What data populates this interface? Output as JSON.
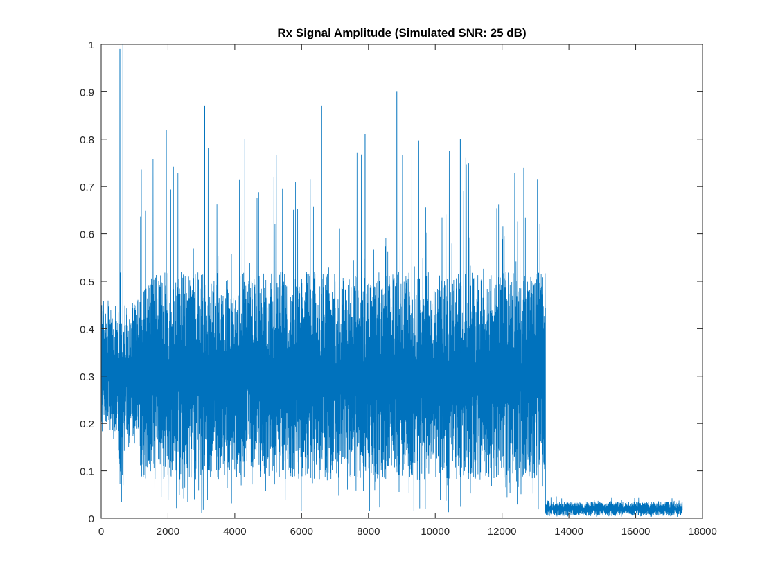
{
  "colors": {
    "background": "#ffffff",
    "axes": "#262626",
    "series": "#0072BD"
  },
  "chart_data": {
    "type": "line",
    "title": "Rx Signal Amplitude (Simulated SNR: 25 dB)",
    "xlabel": "",
    "ylabel": "",
    "xlim": [
      0,
      18000
    ],
    "ylim": [
      0,
      1
    ],
    "grid": false,
    "legend": "none",
    "x_ticks": [
      0,
      2000,
      4000,
      6000,
      8000,
      10000,
      12000,
      14000,
      16000,
      18000
    ],
    "x_tick_labels": [
      "0",
      "2000",
      "4000",
      "6000",
      "8000",
      "10000",
      "12000",
      "14000",
      "16000",
      "18000"
    ],
    "y_ticks": [
      0,
      0.1,
      0.2,
      0.3,
      0.4,
      0.5,
      0.6,
      0.7,
      0.8,
      0.9,
      1
    ],
    "y_tick_labels": [
      "0",
      "0.1",
      "0.2",
      "0.3",
      "0.4",
      "0.5",
      "0.6",
      "0.7",
      "0.8",
      "0.9",
      "1"
    ],
    "series": [
      {
        "color": "#0072BD",
        "num_samples": 17400,
        "segments": [
          {
            "x_start": 0,
            "x_end": 530,
            "typical_min": 0.18,
            "typical_max": 0.45,
            "extreme_min": 0.16,
            "extreme_max": 0.48
          },
          {
            "x_start": 530,
            "x_end": 700,
            "typical_min": 0.05,
            "typical_max": 0.45,
            "extreme_min": 0.03,
            "extreme_max": 0.99
          },
          {
            "x_start": 700,
            "x_end": 1150,
            "typical_min": 0.17,
            "typical_max": 0.45,
            "extreme_min": 0.15,
            "extreme_max": 0.47
          },
          {
            "x_start": 1150,
            "x_end": 13300,
            "typical_min": 0.08,
            "typical_max": 0.52,
            "extreme_min": 0.01,
            "extreme_max": 0.9
          },
          {
            "x_start": 13300,
            "x_end": 17400,
            "typical_min": 0.005,
            "typical_max": 0.035,
            "extreme_min": 0.003,
            "extreme_max": 0.05
          }
        ],
        "peaks": [
          {
            "x": 560,
            "y": 0.99
          },
          {
            "x": 650,
            "y": 1.0
          },
          {
            "x": 1950,
            "y": 0.82
          },
          {
            "x": 3100,
            "y": 0.87
          },
          {
            "x": 4300,
            "y": 0.8
          },
          {
            "x": 6600,
            "y": 0.87
          },
          {
            "x": 7900,
            "y": 0.81
          },
          {
            "x": 8850,
            "y": 0.9
          },
          {
            "x": 10750,
            "y": 0.8
          },
          {
            "x": 12650,
            "y": 0.74
          }
        ]
      }
    ]
  }
}
